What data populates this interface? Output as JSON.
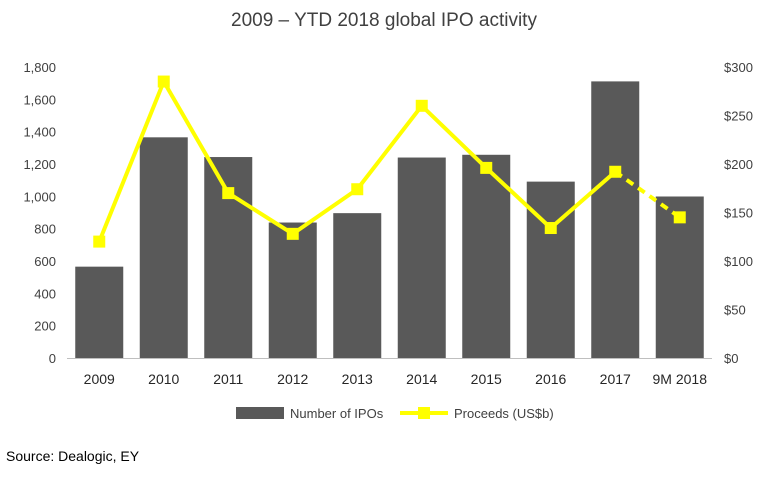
{
  "chart_data": {
    "type": "bar+line",
    "title": "2009 – YTD 2018 global IPO activity",
    "categories": [
      "2009",
      "2010",
      "2011",
      "2012",
      "2013",
      "2014",
      "2015",
      "2016",
      "2017",
      "9M 2018"
    ],
    "series": [
      {
        "name": "Number of IPOs",
        "type": "bar",
        "axis": "left",
        "color": "#595959",
        "values": [
          565,
          1365,
          1243,
          838,
          896,
          1240,
          1257,
          1091,
          1711,
          999
        ]
      },
      {
        "name": "Proceeds (US$b)",
        "type": "line",
        "axis": "right",
        "color": "#ffff00",
        "values": [
          120,
          285,
          170,
          128,
          174,
          260,
          196,
          134,
          192,
          145
        ],
        "dashed_last_segment": true
      }
    ],
    "y_left": {
      "min": 0,
      "max": 1800,
      "step": 200,
      "ticks": [
        "0",
        "200",
        "400",
        "600",
        "800",
        "1,000",
        "1,200",
        "1,400",
        "1,600",
        "1,800"
      ]
    },
    "y_right": {
      "min": 0,
      "max": 300,
      "step": 50,
      "ticks": [
        "$0",
        "$50",
        "$100",
        "$150",
        "$200",
        "$250",
        "$300"
      ]
    },
    "grid": false,
    "legend_position": "bottom"
  },
  "source": "Source: Dealogic, EY"
}
